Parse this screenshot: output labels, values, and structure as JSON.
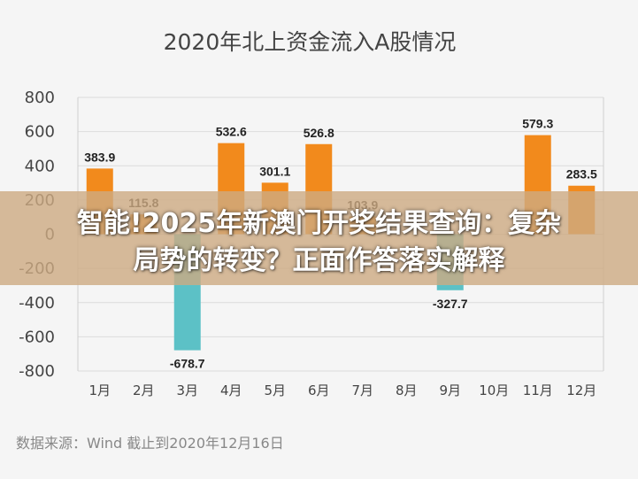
{
  "chart_data": {
    "type": "bar",
    "title": "2020年北上资金流入A股情况",
    "categories": [
      "1月",
      "2月",
      "3月",
      "4月",
      "5月",
      "6月",
      "7月",
      "8月",
      "9月",
      "10月",
      "11月",
      "12月"
    ],
    "values": [
      383.9,
      115.8,
      -678.7,
      532.6,
      301.1,
      526.8,
      103.9,
      null,
      -327.7,
      null,
      579.3,
      283.5
    ],
    "data_labels": [
      "383.9",
      "115.8",
      "-678.7",
      "532.6",
      "301.1",
      "526.8",
      "103.9",
      "",
      "-327.7",
      "",
      "579.3",
      "283.5"
    ],
    "ylim": [
      -800,
      800
    ],
    "yticks": [
      -800,
      -600,
      -400,
      -200,
      0,
      200,
      400,
      600,
      800
    ],
    "xlabel": "",
    "ylabel": "",
    "grid": true,
    "colors": {
      "positive": "#f28a1c",
      "negative": "#5cc1c6"
    }
  },
  "source_note": "数据来源：Wind    截止到2020年12月16日",
  "banner": {
    "line1": "智能!2025年新澳门开奖结果查询：复杂",
    "line2": "局势的转变？正面作答落实解释"
  }
}
